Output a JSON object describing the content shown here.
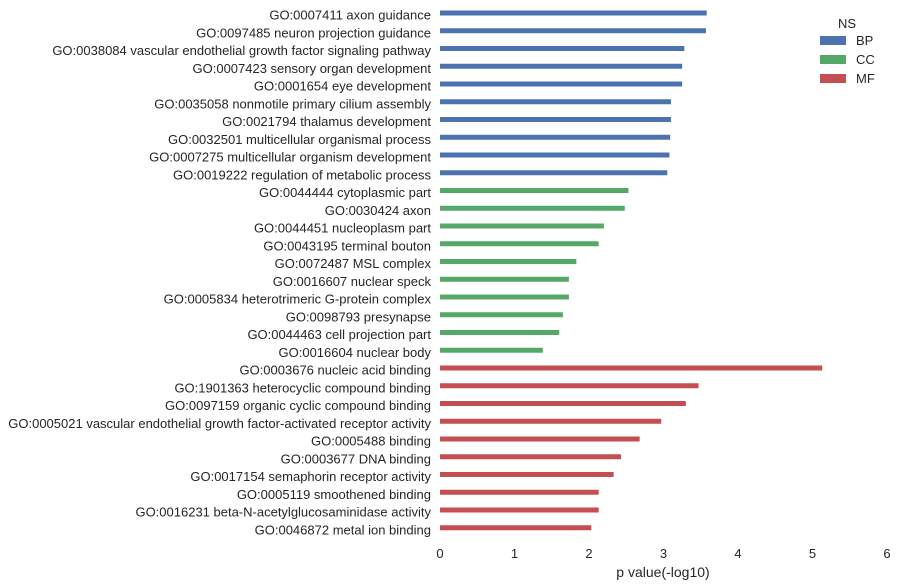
{
  "chart_data": {
    "type": "bar",
    "orientation": "horizontal",
    "xlabel": "p value(-log10)",
    "xlim": [
      0,
      6
    ],
    "xticks": [
      "0",
      "1",
      "2",
      "3",
      "4",
      "5",
      "6"
    ],
    "grid": false,
    "legend": {
      "title": "NS",
      "placement": "top-right",
      "entries": [
        {
          "name": "BP",
          "color": "#4c72b0"
        },
        {
          "name": "CC",
          "color": "#55a868"
        },
        {
          "name": "MF",
          "color": "#c44e52"
        }
      ]
    },
    "bars": [
      {
        "label": "GO:0007411 axon guidance",
        "value": 3.58,
        "group": "BP"
      },
      {
        "label": "GO:0097485 neuron projection guidance",
        "value": 3.57,
        "group": "BP"
      },
      {
        "label": "GO:0038084 vascular endothelial growth factor signaling pathway",
        "value": 3.28,
        "group": "BP"
      },
      {
        "label": "GO:0007423 sensory organ development",
        "value": 3.25,
        "group": "BP"
      },
      {
        "label": "GO:0001654 eye development",
        "value": 3.25,
        "group": "BP"
      },
      {
        "label": "GO:0035058 nonmotile primary cilium assembly",
        "value": 3.1,
        "group": "BP"
      },
      {
        "label": "GO:0021794 thalamus development",
        "value": 3.1,
        "group": "BP"
      },
      {
        "label": "GO:0032501 multicellular organismal process",
        "value": 3.09,
        "group": "BP"
      },
      {
        "label": "GO:0007275 multicellular organism development",
        "value": 3.08,
        "group": "BP"
      },
      {
        "label": "GO:0019222 regulation of metabolic process",
        "value": 3.05,
        "group": "BP"
      },
      {
        "label": "GO:0044444 cytoplasmic part",
        "value": 2.53,
        "group": "CC"
      },
      {
        "label": "GO:0030424 axon",
        "value": 2.48,
        "group": "CC"
      },
      {
        "label": "GO:0044451 nucleoplasm part",
        "value": 2.2,
        "group": "CC"
      },
      {
        "label": "GO:0043195 terminal bouton",
        "value": 2.13,
        "group": "CC"
      },
      {
        "label": "GO:0072487 MSL complex",
        "value": 1.83,
        "group": "CC"
      },
      {
        "label": "GO:0016607 nuclear speck",
        "value": 1.73,
        "group": "CC"
      },
      {
        "label": "GO:0005834 heterotrimeric G-protein complex",
        "value": 1.73,
        "group": "CC"
      },
      {
        "label": "GO:0098793 presynapse",
        "value": 1.65,
        "group": "CC"
      },
      {
        "label": "GO:0044463 cell projection part",
        "value": 1.6,
        "group": "CC"
      },
      {
        "label": "GO:0016604 nuclear body",
        "value": 1.38,
        "group": "CC"
      },
      {
        "label": "GO:0003676 nucleic acid binding",
        "value": 5.13,
        "group": "MF"
      },
      {
        "label": "GO:1901363 heterocyclic compound binding",
        "value": 3.47,
        "group": "MF"
      },
      {
        "label": "GO:0097159 organic cyclic compound binding",
        "value": 3.3,
        "group": "MF"
      },
      {
        "label": "GO:0005021 vascular endothelial growth factor-activated receptor activity",
        "value": 2.97,
        "group": "MF"
      },
      {
        "label": "GO:0005488 binding",
        "value": 2.68,
        "group": "MF"
      },
      {
        "label": "GO:0003677 DNA binding",
        "value": 2.43,
        "group": "MF"
      },
      {
        "label": "GO:0017154 semaphorin receptor activity",
        "value": 2.33,
        "group": "MF"
      },
      {
        "label": "GO:0005119 smoothened binding",
        "value": 2.13,
        "group": "MF"
      },
      {
        "label": "GO:0016231 beta-N-acetylglucosaminidase activity",
        "value": 2.13,
        "group": "MF"
      },
      {
        "label": "GO:0046872 metal ion binding",
        "value": 2.03,
        "group": "MF"
      }
    ]
  }
}
